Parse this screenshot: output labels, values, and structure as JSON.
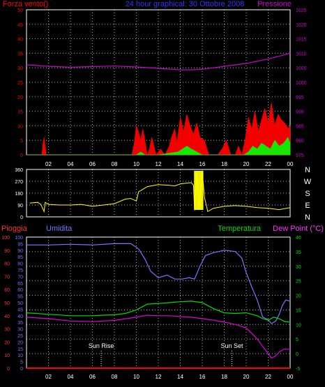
{
  "header": {
    "left": "Forza vento()",
    "center": "24 hour graphical:  30 Ottobre 2008",
    "right": "Pressione"
  },
  "bottom_header": {
    "pioggia": "Pioggia",
    "umidita": "Umidita",
    "temperatura": "Temperatura",
    "dewpoint": "Dew Point (°C)"
  },
  "annotations": {
    "sunrise": "Sun Rise",
    "sunset": "Sun Set"
  },
  "colors": {
    "wind": "#ff0000",
    "gust": "#00ff00",
    "pressure": "#cc00cc",
    "direction": "#ffff00",
    "humidity": "#7777ff",
    "temperature": "#00dd00",
    "dewpoint": "#dd00dd",
    "rain": "#ff0000",
    "grid": "#ffffff"
  },
  "chart_data": [
    {
      "type": "area",
      "name": "wind-pressure",
      "x_range": [
        0,
        24
      ],
      "x_tick_labels": [
        "02",
        "04",
        "06",
        "08",
        "10",
        "12",
        "14",
        "16",
        "18",
        "20",
        "22",
        "00"
      ],
      "x_tick_hours": [
        2,
        4,
        6,
        8,
        10,
        12,
        14,
        16,
        18,
        20,
        22,
        24
      ],
      "y_left_range": [
        0,
        50
      ],
      "y_left_ticks": [
        "0",
        "5",
        "10",
        "15",
        "20",
        "25",
        "30",
        "35",
        "40",
        "45",
        "50"
      ],
      "y_right_range": [
        975,
        1025
      ],
      "y_right_ticks": [
        "975",
        "980",
        "985",
        "990",
        "995",
        "1000",
        "1005",
        "1010",
        "1015",
        "1020",
        "1025"
      ],
      "grid": true,
      "series": [
        {
          "key": "pressure",
          "axis": "right",
          "x": [
            0,
            2,
            4,
            6,
            8,
            10,
            12,
            14,
            15,
            16,
            18,
            20,
            22,
            24
          ],
          "values": [
            1006,
            1005.5,
            1005.2,
            1005.4,
            1005.6,
            1005.3,
            1004.8,
            1004.3,
            1004.3,
            1004.5,
            1005.5,
            1006.5,
            1008,
            1010
          ]
        },
        {
          "key": "wind",
          "axis": "left",
          "x": [
            0,
            0.8,
            1.4,
            1.5,
            1.6,
            1.8,
            3,
            9.6,
            9.8,
            10.0,
            10.2,
            10.4,
            10.6,
            11.0,
            11.2,
            11.4,
            11.8,
            12.2,
            12.6,
            13.0,
            13.2,
            13.5,
            13.7,
            14.0,
            14.3,
            14.6,
            14.9,
            15.2,
            15.5,
            15.8,
            16.2,
            16.6,
            17.0,
            17.4,
            17.8,
            18.2,
            18.6,
            19.0,
            19.3,
            19.6,
            19.9,
            20.2,
            20.5,
            20.8,
            21.1,
            21.4,
            21.7,
            22.0,
            22.3,
            22.6,
            22.9,
            23.2,
            23.5,
            23.8,
            24
          ],
          "values": [
            0,
            0,
            0,
            4,
            6,
            0,
            0,
            0,
            4,
            10,
            8,
            5,
            9,
            0,
            2,
            6,
            0,
            2,
            0,
            3,
            6,
            9,
            4,
            13,
            8,
            14,
            10,
            7,
            11,
            6,
            5,
            0,
            0,
            0,
            2,
            5,
            0,
            0,
            3,
            0,
            5,
            13,
            9,
            15,
            8,
            12,
            16,
            11,
            18,
            10,
            14,
            12,
            11,
            9,
            10
          ]
        },
        {
          "key": "gust",
          "axis": "left",
          "x": [
            0,
            10,
            10.4,
            10.8,
            11.2,
            12,
            13.8,
            14.2,
            14.6,
            15,
            15.5,
            16,
            19.8,
            20.2,
            20.6,
            21,
            21.4,
            21.8,
            22.2,
            22.6,
            23,
            23.4,
            23.8,
            24
          ],
          "values": [
            0,
            0,
            1,
            0,
            0,
            0,
            1,
            2,
            3,
            2,
            1,
            0,
            0,
            1,
            3,
            2,
            4,
            3,
            2,
            5,
            3,
            4,
            6,
            4
          ]
        }
      ]
    },
    {
      "type": "line",
      "name": "wind-direction",
      "x_range": [
        0,
        24
      ],
      "y_range": [
        0,
        360
      ],
      "y_ticks": [
        "0",
        "90",
        "180",
        "270",
        "360"
      ],
      "compass_labels": [
        "N",
        "W",
        "S",
        "E",
        "N"
      ],
      "grid": true,
      "series": [
        {
          "key": "direction",
          "x": [
            0.3,
            1,
            1.3,
            1.6,
            1.7,
            2,
            3,
            4,
            5,
            6,
            7,
            8,
            9,
            9.5,
            10,
            10.2,
            10.5,
            11,
            12,
            13,
            13.5,
            14,
            14.5,
            15,
            15.2,
            15.3,
            15.5,
            15.7,
            16,
            16.2,
            16.5,
            17,
            18,
            19,
            20,
            21,
            22,
            23,
            24
          ],
          "values": [
            105,
            110,
            95,
            40,
            110,
            95,
            90,
            90,
            95,
            80,
            90,
            100,
            135,
            140,
            120,
            190,
            205,
            230,
            245,
            240,
            235,
            250,
            255,
            260,
            240,
            50,
            330,
            60,
            350,
            150,
            40,
            65,
            80,
            85,
            80,
            70,
            65,
            55,
            70
          ]
        }
      ]
    },
    {
      "type": "line",
      "name": "humidity-temperature",
      "x_range": [
        0,
        24
      ],
      "y_left_range": [
        0,
        100
      ],
      "y_left_ticks": [
        "0",
        "10",
        "20",
        "30",
        "40",
        "50",
        "60",
        "70",
        "80",
        "90",
        "100"
      ],
      "y_hum_range": [
        0,
        100
      ],
      "y_hum_ticks": [
        "0",
        "5",
        "10",
        "15",
        "20",
        "25",
        "30",
        "35",
        "40",
        "45",
        "50",
        "55",
        "60",
        "65",
        "70",
        "75",
        "80",
        "85",
        "90",
        "95",
        "100"
      ],
      "y_right_range": [
        -5,
        40
      ],
      "y_right_ticks": [
        "-5",
        "0",
        "5",
        "10",
        "15",
        "20",
        "25",
        "30",
        "35",
        "40"
      ],
      "grid": true,
      "series": [
        {
          "key": "humidity",
          "axis": "hum",
          "x": [
            0,
            2,
            4,
            6,
            8,
            9.5,
            10.2,
            10.8,
            11.3,
            12,
            12.8,
            13.5,
            14.2,
            14.8,
            15.3,
            15.8,
            16.3,
            17,
            18,
            19,
            19.6,
            20,
            20.5,
            21,
            21.5,
            22,
            22.3,
            22.7,
            23,
            23.3,
            23.6,
            24
          ],
          "values": [
            94,
            94,
            94.5,
            94,
            95,
            95,
            91,
            83,
            74,
            69,
            71,
            68,
            68,
            69,
            68,
            78,
            86,
            88,
            90,
            89,
            84,
            73,
            62,
            52,
            39,
            37,
            34,
            36,
            41,
            48,
            52,
            51
          ]
        },
        {
          "key": "temperature",
          "axis": "right",
          "x": [
            0,
            2,
            4,
            6,
            7,
            8,
            9,
            10,
            11,
            12,
            13,
            14,
            15,
            16,
            17,
            18,
            19,
            20,
            20.5,
            21,
            21.5,
            22,
            22.5,
            23,
            23.5,
            24
          ],
          "values": [
            14,
            13.5,
            13,
            13,
            13.2,
            13.3,
            13.8,
            15,
            17,
            17.2,
            17.5,
            17.8,
            18,
            17.5,
            15.5,
            14,
            13.8,
            14,
            13.5,
            13,
            12,
            11.5,
            12.5,
            12,
            11,
            10.8
          ]
        },
        {
          "key": "dewpoint",
          "axis": "right",
          "x": [
            0,
            2,
            4,
            6,
            8,
            10,
            11,
            12,
            13,
            14,
            15,
            16,
            17,
            18,
            19,
            20,
            20.5,
            21,
            21.5,
            22,
            22.3,
            22.6,
            23,
            23.4,
            23.8,
            24
          ],
          "values": [
            12.5,
            12,
            11.2,
            11,
            11.4,
            12.5,
            13.2,
            13,
            13,
            12.7,
            12.5,
            12,
            11.5,
            10.8,
            10,
            8.8,
            7,
            5,
            2.5,
            0,
            -1.5,
            -1,
            0.5,
            1.5,
            1.5,
            1.5
          ]
        },
        {
          "key": "rain",
          "axis": "left",
          "x": [
            0,
            24
          ],
          "values": [
            0,
            0
          ]
        }
      ],
      "sunrise_hour": 6.8,
      "sunset_hour": 18.7
    }
  ]
}
